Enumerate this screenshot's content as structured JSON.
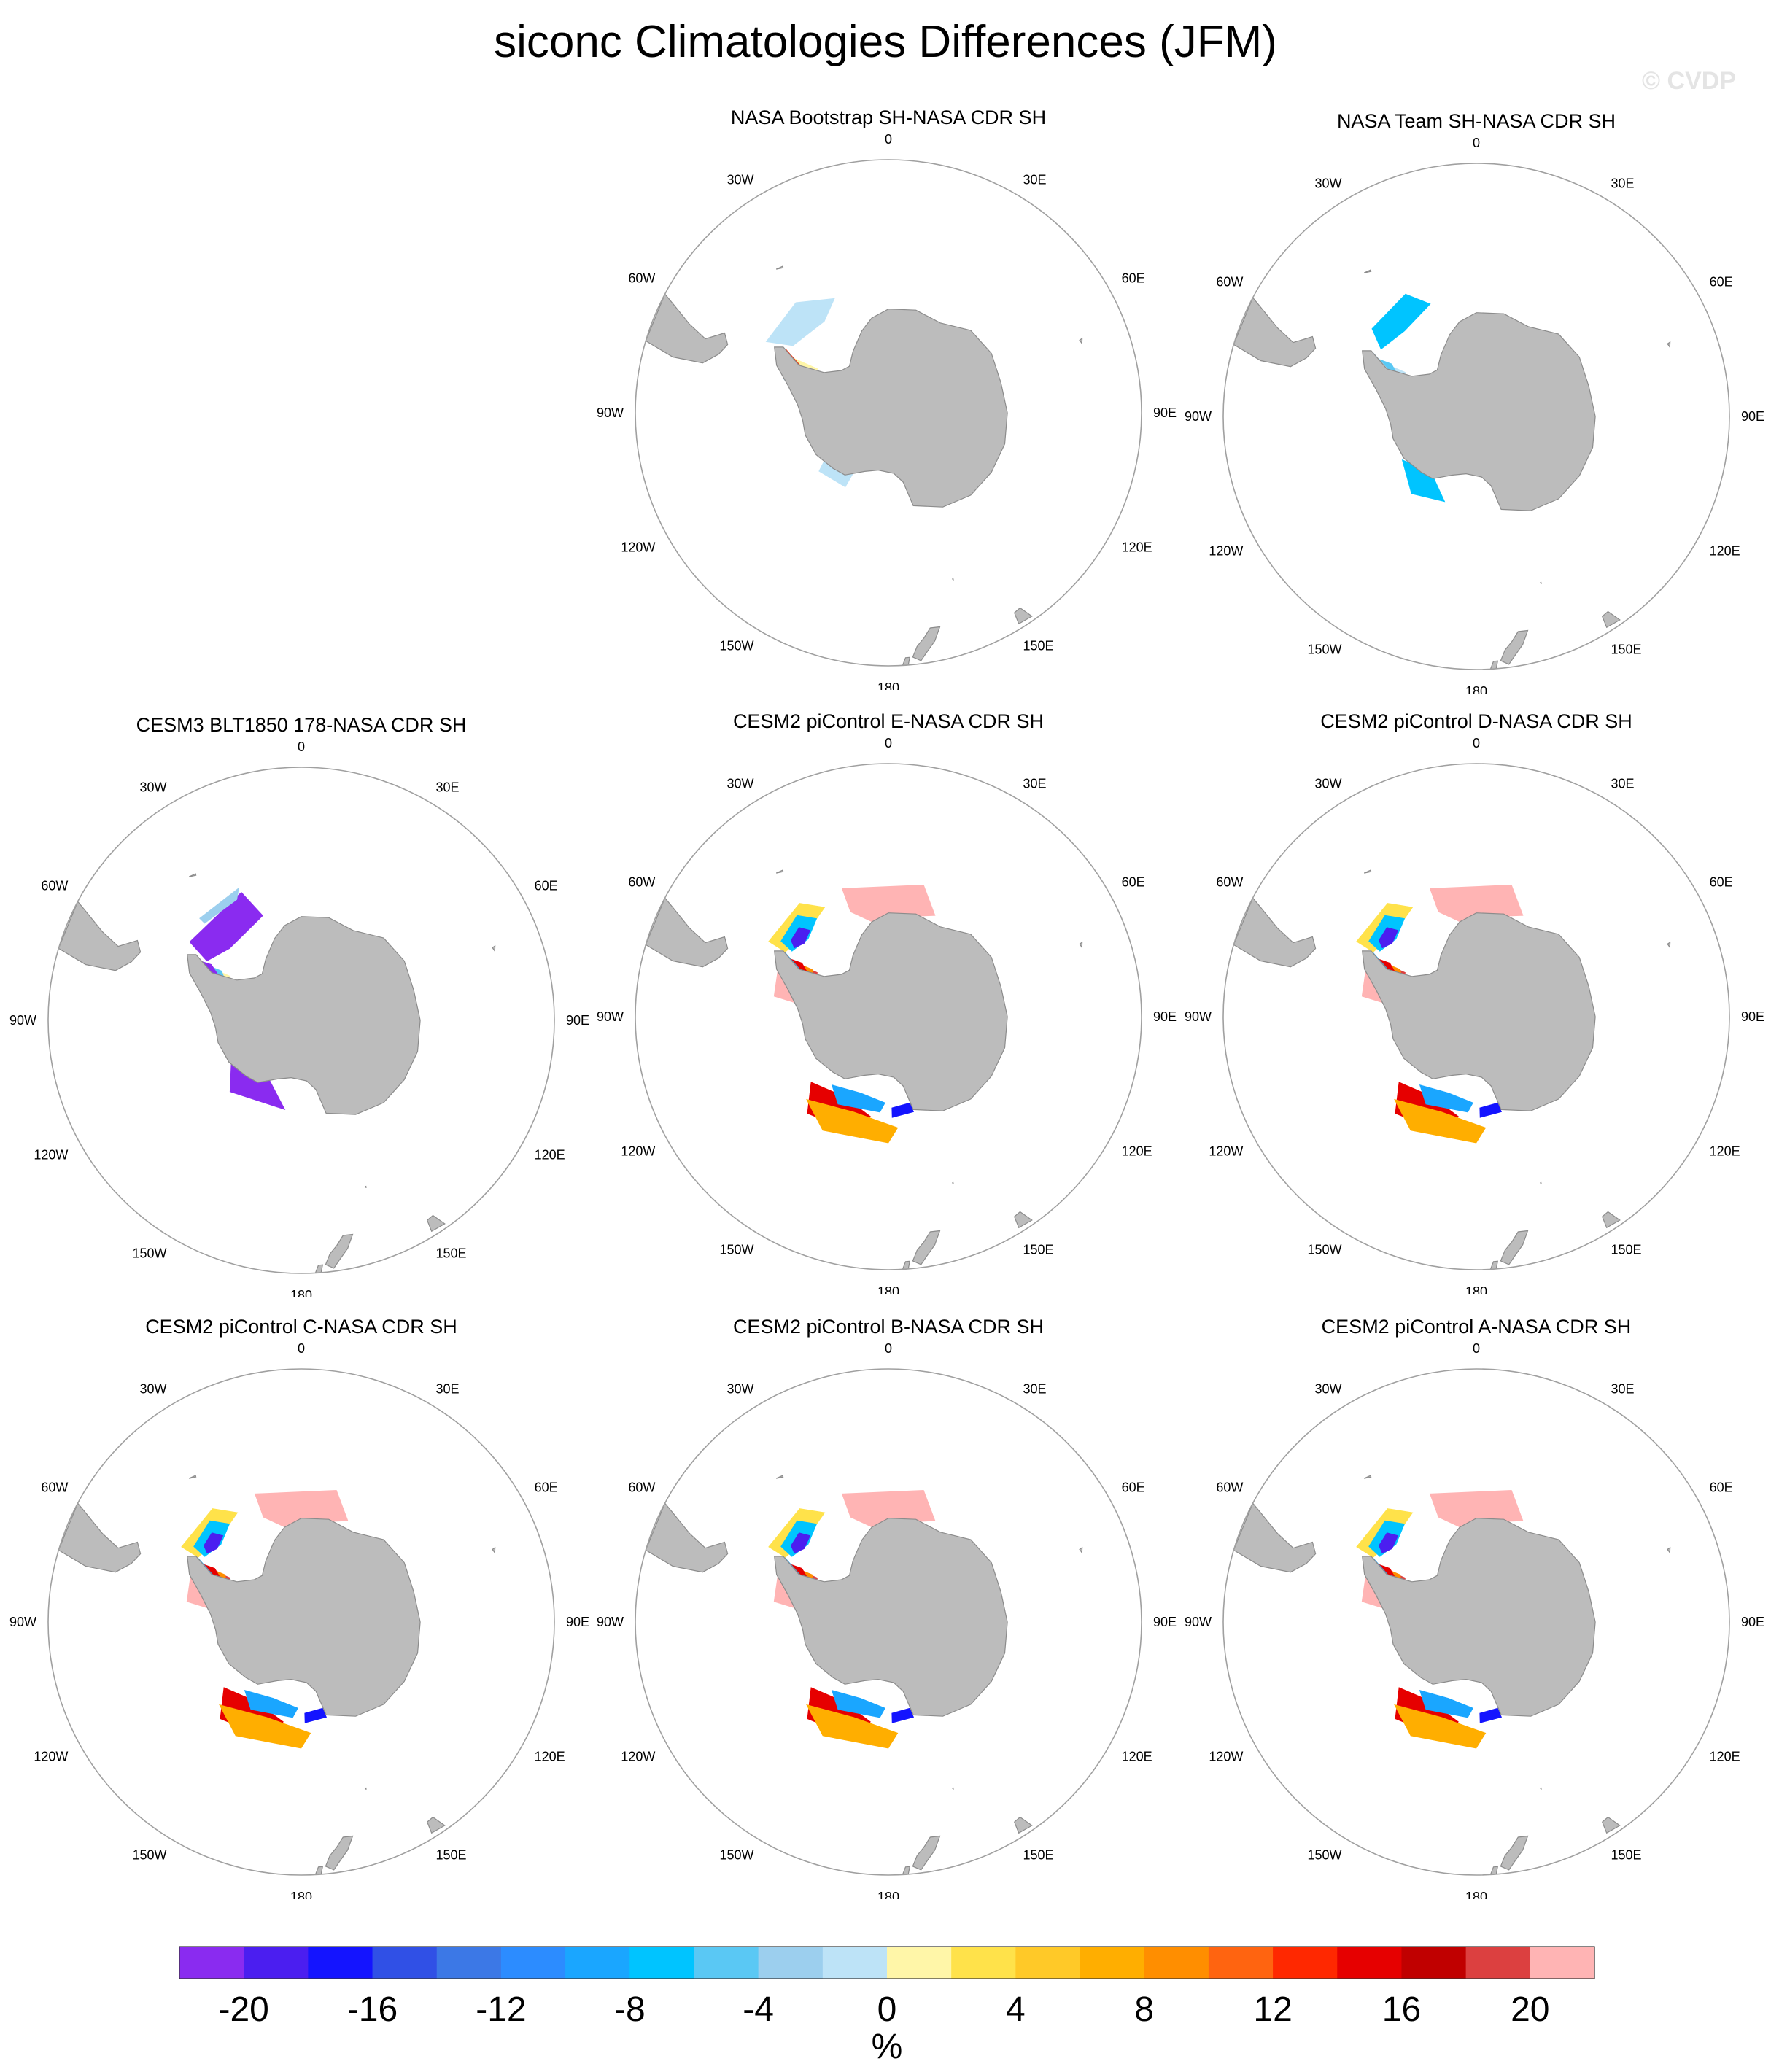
{
  "figure": {
    "title": "siconc Climatologies Differences (JFM)",
    "watermark": "© CVDP"
  },
  "longitude_labels": [
    "0",
    "30E",
    "60E",
    "90E",
    "120E",
    "150E",
    "180",
    "150W",
    "120W",
    "90W",
    "60W",
    "30W"
  ],
  "panels": [
    {
      "id": "p1",
      "title": "NASA Bootstrap SH-NASA CDR SH",
      "pattern": "bootstrap"
    },
    {
      "id": "p2",
      "title": "NASA Team SH-NASA CDR SH",
      "pattern": "team"
    },
    {
      "id": "p3",
      "title": "CESM3 BLT1850 178-NASA CDR SH",
      "pattern": "cesm3"
    },
    {
      "id": "p4",
      "title": "CESM2 piControl E-NASA CDR SH",
      "pattern": "cesm2"
    },
    {
      "id": "p5",
      "title": "CESM2 piControl D-NASA CDR SH",
      "pattern": "cesm2"
    },
    {
      "id": "p6",
      "title": "CESM2 piControl C-NASA CDR SH",
      "pattern": "cesm2"
    },
    {
      "id": "p7",
      "title": "CESM2 piControl B-NASA CDR SH",
      "pattern": "cesm2"
    },
    {
      "id": "p8",
      "title": "CESM2 piControl A-NASA CDR SH",
      "pattern": "cesm2"
    }
  ],
  "colorbar": {
    "unit": "%",
    "colors": [
      "#8a2bf0",
      "#4b1ef0",
      "#1414ff",
      "#3050e6",
      "#3c78e6",
      "#2c8cff",
      "#1aa6ff",
      "#00c4ff",
      "#5ac8f4",
      "#9ccfee",
      "#bde3f7",
      "#fff6a8",
      "#ffe24a",
      "#ffc928",
      "#ffae00",
      "#ff8e00",
      "#ff6410",
      "#ff2800",
      "#e60000",
      "#c00000",
      "#dc4040",
      "#ffb4b4"
    ],
    "ticks": [
      -20,
      -16,
      -12,
      -8,
      -4,
      0,
      4,
      8,
      12,
      16,
      20
    ],
    "tick_labels": [
      "-20",
      "-16",
      "-12",
      "-8",
      "-4",
      "0",
      "4",
      "8",
      "12",
      "16",
      "20"
    ],
    "range": [
      -22,
      22
    ],
    "step": 2
  }
}
